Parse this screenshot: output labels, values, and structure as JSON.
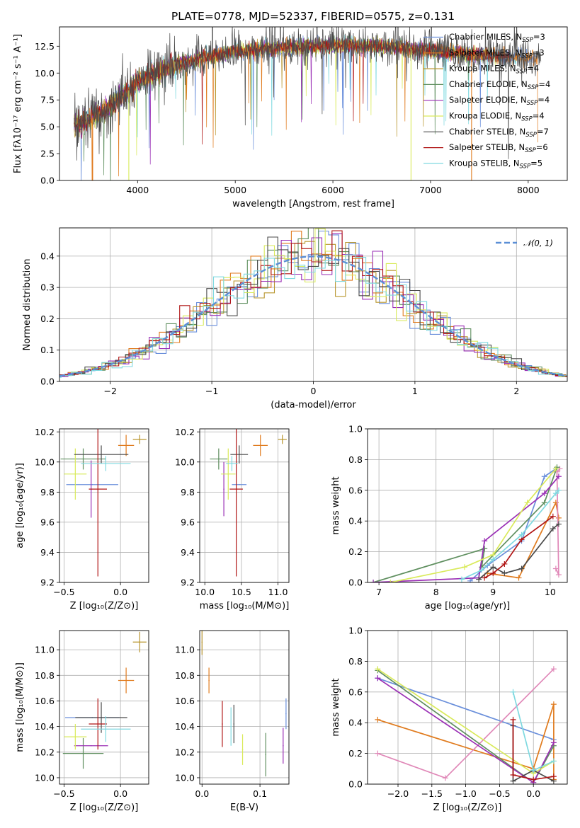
{
  "figure": {
    "title": "PLATE=0778, MJD=52337, FIBERID=0575, z=0.131"
  },
  "colors": {
    "Chabrier MILES": "#6a8fdb",
    "Salpeter MILES": "#e07b1e",
    "Kroupa MILES": "#b8962e",
    "Chabrier ELODIE": "#5f8f5f",
    "Salpeter ELODIE": "#9a2fb5",
    "Kroupa ELODIE": "#d9ea5a",
    "Chabrier STELIB": "#4a4a4a",
    "Salpeter STELIB": "#b01515",
    "Kroupa STELIB": "#7fd9e0",
    "Kroupa MILES mass-weight": "#e088b8",
    "gaussian": "#5b8fd6"
  },
  "chart_data": [
    {
      "id": "spectrum",
      "type": "line",
      "title": "PLATE=0778, MJD=52337, FIBERID=0575, z=0.131",
      "xlabel": "wavelength [Angstrom, rest frame]",
      "ylabel": "Flux [fλ10⁻¹⁷ erg cm⁻² s⁻¹ A⁻¹]",
      "xlim": [
        3200,
        8400
      ],
      "ylim": [
        0,
        14.3
      ],
      "xticks": [
        4000,
        5000,
        6000,
        7000,
        8000
      ],
      "yticks": [
        0.0,
        2.5,
        5.0,
        7.5,
        10.0,
        12.5
      ],
      "legend": "upper right",
      "series": [
        {
          "name": "Chabrier MILES, N_SSP=3",
          "label_main": "Chabrier MILES, N",
          "label_sub": "SSP",
          "label_tail": "=3"
        },
        {
          "name": "Salpeter MILES, N_SSP=3",
          "label_main": "Salpeter MILES, N",
          "label_sub": "SSP",
          "label_tail": "=3"
        },
        {
          "name": "Kroupa MILES, N_SSP=4",
          "label_main": "Kroupa MILES, N",
          "label_sub": "SSP",
          "label_tail": "=4"
        },
        {
          "name": "Chabrier ELODIE, N_SSP=4",
          "label_main": "Chabrier ELODIE, N",
          "label_sub": "SSP",
          "label_tail": "=4"
        },
        {
          "name": "Salpeter ELODIE, N_SSP=4",
          "label_main": "Salpeter ELODIE, N",
          "label_sub": "SSP",
          "label_tail": "=4"
        },
        {
          "name": "Kroupa ELODIE, N_SSP=4",
          "label_main": "Kroupa ELODIE, N",
          "label_sub": "SSP",
          "label_tail": "=4"
        },
        {
          "name": "Chabrier STELIB, N_SSP=7",
          "label_main": "Chabrier STELIB, N",
          "label_sub": "SSP",
          "label_tail": "=7"
        },
        {
          "name": "Salpeter STELIB, N_SSP=6",
          "label_main": "Salpeter STELIB, N",
          "label_sub": "SSP",
          "label_tail": "=6"
        },
        {
          "name": "Kroupa STELIB, N_SSP=5",
          "label_main": "Kroupa STELIB, N",
          "label_sub": "SSP",
          "label_tail": "=5"
        }
      ],
      "continuum_knots": [
        [
          3350,
          5.1
        ],
        [
          3500,
          5.6
        ],
        [
          3700,
          6.8
        ],
        [
          3900,
          8.3
        ],
        [
          4000,
          9.2
        ],
        [
          4200,
          10.1
        ],
        [
          4400,
          10.8
        ],
        [
          4700,
          11.5
        ],
        [
          5000,
          12.0
        ],
        [
          5500,
          12.4
        ],
        [
          6000,
          12.6
        ],
        [
          6500,
          12.5
        ],
        [
          7000,
          12.1
        ],
        [
          7500,
          11.7
        ],
        [
          8100,
          11.3
        ]
      ],
      "drops": [
        {
          "series": "Kroupa ELODIE, N_SSP=4",
          "x": 3910
        },
        {
          "series": "Kroupa ELODIE, N_SSP=4",
          "x": 6800
        },
        {
          "series": "Salpeter MILES, N_SSP=3",
          "x": 7420
        },
        {
          "series": "Salpeter MILES, N_SSP=3",
          "x": 3540
        }
      ]
    },
    {
      "id": "residuals",
      "type": "histogram",
      "xlabel": "(data-model)/error",
      "ylabel": "Normed distribution",
      "xlim": [
        -2.5,
        2.5
      ],
      "ylim": [
        0,
        0.49
      ],
      "xticks": [
        -2,
        -1,
        0,
        1,
        2
      ],
      "yticks": [
        0.0,
        0.1,
        0.2,
        0.3,
        0.4
      ],
      "legend": "upper right",
      "gaussian_label": "𝒩(0, 1)",
      "bin_width": 0.1
    },
    {
      "id": "age-vs-Z",
      "type": "errorbar",
      "xlabel": "Z [log₁₀(Z/Z⊙)]",
      "ylabel": "age  [log₁₀(age/yr)]",
      "xlim": [
        -0.54,
        0.25
      ],
      "ylim": [
        9.2,
        10.22
      ],
      "xticks": [
        -0.5,
        0.0
      ],
      "yticks": [
        9.2,
        9.4,
        9.6,
        9.8,
        10.0,
        10.2
      ],
      "points": [
        {
          "series": "Chabrier MILES",
          "x": -0.25,
          "xerr": 0.23,
          "y": 9.85,
          "yerr": 0.0
        },
        {
          "series": "Salpeter MILES",
          "x": 0.05,
          "xerr": 0.07,
          "y": 10.11,
          "yerr": 0.07
        },
        {
          "series": "Kroupa MILES",
          "x": 0.17,
          "xerr": 0.06,
          "y": 10.15,
          "yerr": 0.03
        },
        {
          "series": "Chabrier ELODIE",
          "x": -0.33,
          "xerr": 0.2,
          "y": 10.02,
          "yerr": 0.07
        },
        {
          "series": "Salpeter ELODIE",
          "x": -0.26,
          "xerr": 0.0,
          "y": 9.82,
          "yerr": 0.19
        },
        {
          "series": "Kroupa ELODIE",
          "x": -0.4,
          "xerr": 0.1,
          "y": 9.92,
          "yerr": 0.17
        },
        {
          "series": "Chabrier STELIB",
          "x": -0.17,
          "xerr": 0.24,
          "y": 10.05,
          "yerr": 0.06
        },
        {
          "series": "Salpeter STELIB",
          "x": -0.2,
          "xerr": 0.08,
          "y": 9.82,
          "yerr": 0.58
        },
        {
          "series": "Kroupa STELIB",
          "x": -0.13,
          "xerr": 0.22,
          "y": 9.99,
          "yerr": 0.05
        }
      ]
    },
    {
      "id": "age-vs-mass",
      "type": "errorbar",
      "xlabel": "mass [log₁₀(M/M⊙)]",
      "xlim": [
        9.93,
        11.15
      ],
      "ylim": [
        9.2,
        10.22
      ],
      "xticks": [
        10.0,
        10.5,
        11.0
      ],
      "yticks": [
        9.2,
        9.4,
        9.6,
        9.8,
        10.0,
        10.2
      ],
      "points": [
        {
          "series": "Chabrier MILES",
          "x": 10.47,
          "xerr": 0.1,
          "y": 9.85,
          "yerr": 0.0
        },
        {
          "series": "Salpeter MILES",
          "x": 10.76,
          "xerr": 0.1,
          "y": 10.11,
          "yerr": 0.07
        },
        {
          "series": "Kroupa MILES",
          "x": 11.06,
          "xerr": 0.06,
          "y": 10.15,
          "yerr": 0.03
        },
        {
          "series": "Chabrier ELODIE",
          "x": 10.19,
          "xerr": 0.12,
          "y": 10.02,
          "yerr": 0.07
        },
        {
          "series": "Salpeter ELODIE",
          "x": 10.26,
          "xerr": 0.0,
          "y": 9.82,
          "yerr": 0.18
        },
        {
          "series": "Kroupa ELODIE",
          "x": 10.32,
          "xerr": 0.1,
          "y": 9.92,
          "yerr": 0.17
        },
        {
          "series": "Chabrier STELIB",
          "x": 10.47,
          "xerr": 0.12,
          "y": 10.05,
          "yerr": 0.06
        },
        {
          "series": "Salpeter STELIB",
          "x": 10.43,
          "xerr": 0.09,
          "y": 9.82,
          "yerr": 0.58
        },
        {
          "series": "Kroupa STELIB",
          "x": 10.37,
          "xerr": 0.08,
          "y": 9.99,
          "yerr": 0.05
        }
      ]
    },
    {
      "id": "mass-weight-vs-age",
      "type": "line",
      "xlabel": "age  [log₁₀(age/yr)]",
      "ylabel": "mass weight",
      "xlim": [
        6.8,
        10.3
      ],
      "ylim": [
        0,
        1.0
      ],
      "xticks": [
        7,
        8,
        9,
        10
      ],
      "yticks": [
        0.0,
        0.2,
        0.4,
        0.6,
        0.8,
        1.0
      ],
      "series": [
        {
          "name": "Chabrier MILES",
          "points": [
            [
              8.6,
              0.01
            ],
            [
              8.9,
              0.11
            ],
            [
              9.5,
              0.27
            ],
            [
              9.9,
              0.69
            ],
            [
              10.1,
              0.74
            ]
          ]
        },
        {
          "name": "Salpeter MILES",
          "points": [
            [
              8.9,
              0.06
            ],
            [
              9.45,
              0.03
            ],
            [
              10.1,
              0.52
            ],
            [
              10.15,
              0.42
            ]
          ]
        },
        {
          "name": "Kroupa MILES",
          "points": [
            [
              10.1,
              0.09
            ],
            [
              10.15,
              0.05
            ],
            [
              10.12,
              0.72
            ],
            [
              10.17,
              0.74
            ]
          ]
        },
        {
          "name": "Chabrier ELODIE",
          "points": [
            [
              6.9,
              0.0
            ],
            [
              8.85,
              0.22
            ],
            [
              8.8,
              0.1
            ],
            [
              9.9,
              0.52
            ],
            [
              10.12,
              0.75
            ]
          ]
        },
        {
          "name": "Salpeter ELODIE",
          "points": [
            [
              6.9,
              0.0
            ],
            [
              8.75,
              0.03
            ],
            [
              8.85,
              0.27
            ],
            [
              9.9,
              0.58
            ],
            [
              10.15,
              0.69
            ]
          ]
        },
        {
          "name": "Kroupa ELODIE",
          "points": [
            [
              7.2,
              0.0
            ],
            [
              8.5,
              0.1
            ],
            [
              9.0,
              0.18
            ],
            [
              9.6,
              0.52
            ],
            [
              10.1,
              0.74
            ]
          ]
        },
        {
          "name": "Chabrier STELIB",
          "points": [
            [
              8.75,
              0.02
            ],
            [
              9.0,
              0.1
            ],
            [
              9.2,
              0.06
            ],
            [
              9.5,
              0.09
            ],
            [
              10.05,
              0.35
            ],
            [
              10.15,
              0.38
            ]
          ]
        },
        {
          "name": "Salpeter STELIB",
          "points": [
            [
              8.85,
              0.03
            ],
            [
              9.0,
              0.06
            ],
            [
              9.2,
              0.12
            ],
            [
              9.5,
              0.28
            ],
            [
              10.05,
              0.43
            ]
          ]
        },
        {
          "name": "Kroupa STELIB",
          "points": [
            [
              8.45,
              0.02
            ],
            [
              8.8,
              0.08
            ],
            [
              9.0,
              0.15
            ],
            [
              9.5,
              0.31
            ],
            [
              10.1,
              0.58
            ],
            [
              10.15,
              0.6
            ]
          ]
        }
      ]
    },
    {
      "id": "mass-vs-Z",
      "type": "errorbar",
      "xlabel": "Z [log₁₀(Z/Z⊙)]",
      "ylabel": "mass [log₁₀(M/M⊙)]",
      "xlim": [
        -0.54,
        0.25
      ],
      "ylim": [
        9.95,
        11.15
      ],
      "xticks": [
        -0.5,
        0.0
      ],
      "yticks": [
        10.0,
        10.2,
        10.4,
        10.6,
        10.8,
        11.0
      ],
      "points": [
        {
          "series": "Chabrier MILES",
          "x": -0.25,
          "xerr": 0.24,
          "y": 10.47,
          "yerr": 0.0
        },
        {
          "series": "Salpeter MILES",
          "x": 0.05,
          "xerr": 0.07,
          "y": 10.76,
          "yerr": 0.1
        },
        {
          "series": "Kroupa MILES",
          "x": 0.17,
          "xerr": 0.06,
          "y": 11.06,
          "yerr": 0.08
        },
        {
          "series": "Chabrier ELODIE",
          "x": -0.33,
          "xerr": 0.18,
          "y": 10.19,
          "yerr": 0.12
        },
        {
          "series": "Salpeter ELODIE",
          "x": -0.26,
          "xerr": 0.15,
          "y": 10.25,
          "yerr": 0.0
        },
        {
          "series": "Kroupa ELODIE",
          "x": -0.4,
          "xerr": 0.1,
          "y": 10.32,
          "yerr": 0.1
        },
        {
          "series": "Chabrier STELIB",
          "x": -0.17,
          "xerr": 0.23,
          "y": 10.47,
          "yerr": 0.12
        },
        {
          "series": "Salpeter STELIB",
          "x": -0.2,
          "xerr": 0.08,
          "y": 10.42,
          "yerr": 0.2
        },
        {
          "series": "Kroupa STELIB",
          "x": -0.13,
          "xerr": 0.22,
          "y": 10.38,
          "yerr": 0.1
        }
      ]
    },
    {
      "id": "mass-vs-EBV",
      "type": "errorbar",
      "xlabel": "E(B-V)",
      "xlim": [
        -0.004,
        0.15
      ],
      "ylim": [
        9.95,
        11.15
      ],
      "xticks": [
        0.0,
        0.1
      ],
      "yticks": [
        10.0,
        10.2,
        10.4,
        10.6,
        10.8,
        11.0
      ],
      "points": [
        {
          "series": "Chabrier MILES",
          "x": 0.145,
          "xerr": 0.0,
          "y": 10.5,
          "yerr": 0.12
        },
        {
          "series": "Salpeter MILES",
          "x": 0.012,
          "xerr": 0.0,
          "y": 10.76,
          "yerr": 0.1
        },
        {
          "series": "Kroupa MILES",
          "x": 0.0,
          "xerr": 0.0,
          "y": 11.06,
          "yerr": 0.1
        },
        {
          "series": "Chabrier ELODIE",
          "x": 0.11,
          "xerr": 0.0,
          "y": 10.18,
          "yerr": 0.17
        },
        {
          "series": "Salpeter ELODIE",
          "x": 0.14,
          "xerr": 0.0,
          "y": 10.25,
          "yerr": 0.14
        },
        {
          "series": "Kroupa ELODIE",
          "x": 0.07,
          "xerr": 0.0,
          "y": 10.22,
          "yerr": 0.12
        },
        {
          "series": "Chabrier STELIB",
          "x": 0.055,
          "xerr": 0.0,
          "y": 10.42,
          "yerr": 0.15
        },
        {
          "series": "Salpeter STELIB",
          "x": 0.035,
          "xerr": 0.0,
          "y": 10.42,
          "yerr": 0.18
        },
        {
          "series": "Kroupa STELIB",
          "x": 0.05,
          "xerr": 0.0,
          "y": 10.4,
          "yerr": 0.15
        }
      ]
    },
    {
      "id": "mass-weight-vs-Z",
      "type": "line",
      "xlabel": "Z [log₁₀(Z/Z⊙)]",
      "ylabel": "mass weight",
      "xlim": [
        -2.45,
        0.5
      ],
      "ylim": [
        0,
        1.0
      ],
      "xticks": [
        -2.0,
        -1.5,
        -1.0,
        -0.5,
        0.0
      ],
      "yticks": [
        0.0,
        0.2,
        0.4,
        0.6,
        0.8,
        1.0
      ],
      "series": [
        {
          "name": "Chabrier MILES",
          "points": [
            [
              -2.3,
              0.69
            ],
            [
              0.3,
              0.29
            ]
          ]
        },
        {
          "name": "Salpeter MILES",
          "points": [
            [
              -2.3,
              0.42
            ],
            [
              0.0,
              0.1
            ],
            [
              0.3,
              0.52
            ],
            [
              0.3,
              0.03
            ]
          ]
        },
        {
          "name": "Kroupa MILES",
          "points": [
            [
              -2.3,
              0.2
            ],
            [
              -1.3,
              0.04
            ],
            [
              0.3,
              0.75
            ]
          ]
        },
        {
          "name": "Chabrier ELODIE",
          "points": [
            [
              -2.3,
              0.74
            ],
            [
              0.0,
              0.01
            ],
            [
              0.3,
              0.25
            ]
          ]
        },
        {
          "name": "Salpeter ELODIE",
          "points": [
            [
              -2.3,
              0.69
            ],
            [
              0.0,
              0.01
            ],
            [
              0.3,
              0.27
            ]
          ]
        },
        {
          "name": "Kroupa ELODIE",
          "points": [
            [
              -2.3,
              0.75
            ],
            [
              0.0,
              0.07
            ],
            [
              0.3,
              0.15
            ]
          ]
        },
        {
          "name": "Chabrier STELIB",
          "points": [
            [
              -0.3,
              0.38
            ],
            [
              -0.3,
              0.02
            ],
            [
              0.0,
              0.09
            ],
            [
              0.3,
              0.02
            ]
          ]
        },
        {
          "name": "Salpeter STELIB",
          "points": [
            [
              -0.3,
              0.42
            ],
            [
              -0.3,
              0.06
            ],
            [
              0.0,
              0.03
            ],
            [
              0.3,
              0.05
            ]
          ]
        },
        {
          "name": "Kroupa STELIB",
          "points": [
            [
              -0.3,
              0.6
            ],
            [
              0.0,
              0.09
            ],
            [
              0.3,
              0.15
            ]
          ]
        }
      ]
    }
  ]
}
